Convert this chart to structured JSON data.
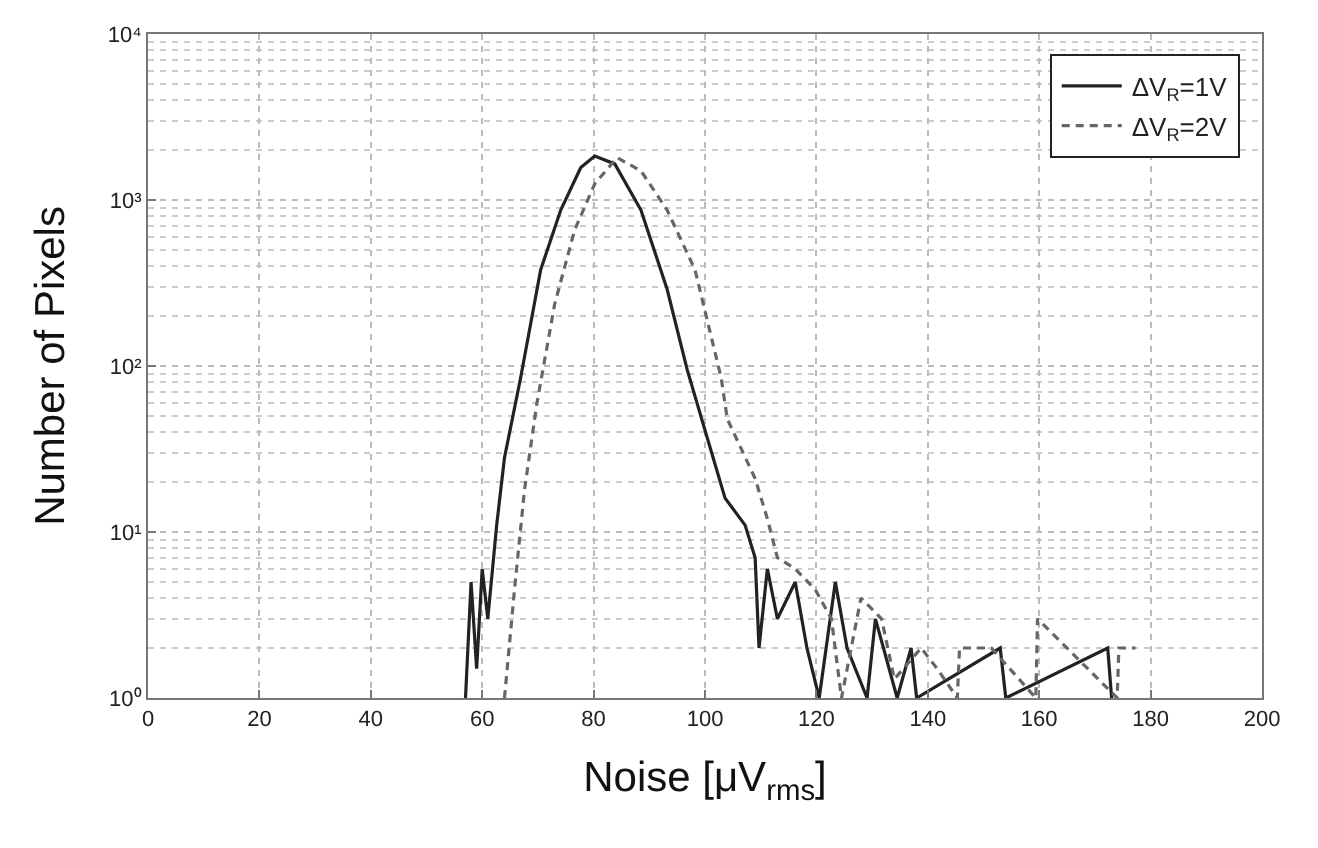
{
  "chart_data": {
    "type": "line",
    "xlabel": "Noise [μV$_{rms}$]",
    "ylabel": "Number of Pixels",
    "log": "y",
    "xlim": [
      0,
      200
    ],
    "xticks": [
      0,
      20,
      40,
      60,
      80,
      100,
      120,
      140,
      160,
      180,
      200
    ],
    "ylim": [
      1,
      10000
    ],
    "yticks": [
      {
        "value": 1,
        "label": "10⁰"
      },
      {
        "value": 10,
        "label": "10¹"
      },
      {
        "value": 100,
        "label": "10²"
      },
      {
        "value": 1000,
        "label": "10³"
      },
      {
        "value": 10000,
        "label": "10⁴"
      }
    ],
    "grid": true,
    "legend": "top right",
    "marker": "none",
    "series": [
      {
        "name": "ΔV$_{R}$=1V",
        "color": "#222222",
        "line_style": "solid",
        "x": [
          57,
          58,
          59,
          60,
          61,
          62.6,
          64,
          66.9,
          70.5,
          74.1,
          77.7,
          80.2,
          83.8,
          88.5,
          93.2,
          96.8,
          100.4,
          103.6,
          107.2,
          109,
          109.7,
          111.2,
          113,
          116.2,
          118.3,
          120.5,
          123.4,
          125.5,
          129.1,
          130.6,
          134.5,
          137,
          138,
          153,
          154,
          172.3,
          173
        ],
        "values": [
          1,
          5,
          1.5,
          6,
          3,
          11,
          28,
          85,
          380,
          870,
          1570,
          1840,
          1650,
          870,
          290,
          95,
          37,
          16,
          11,
          7,
          2,
          6,
          3,
          5,
          2,
          1,
          5,
          2,
          1,
          3,
          1,
          2,
          1,
          2,
          1,
          2,
          1
        ]
      },
      {
        "name": "ΔV$_{R}$=2V",
        "color": "#666666",
        "line_style": "dashed",
        "x": [
          64,
          65.8,
          67.6,
          69.8,
          73,
          76.6,
          80.2,
          84.2,
          88.5,
          93.2,
          98.2,
          102.9,
          104,
          109,
          111.2,
          113,
          116.2,
          119.8,
          122.7,
          124.5,
          128,
          131.7,
          134,
          138.8,
          141.7,
          145.3,
          145.7,
          148.6,
          151.4,
          159.4,
          159.7,
          174,
          174.3,
          177.3
        ],
        "values": [
          1,
          4.5,
          18,
          59,
          235,
          660,
          1250,
          1800,
          1500,
          870,
          380,
          85,
          48,
          21,
          12,
          7,
          6,
          4.5,
          3,
          1,
          4,
          3,
          1.3,
          2,
          1.5,
          1,
          2,
          2,
          2,
          1,
          3,
          1,
          2,
          2
        ]
      }
    ]
  }
}
